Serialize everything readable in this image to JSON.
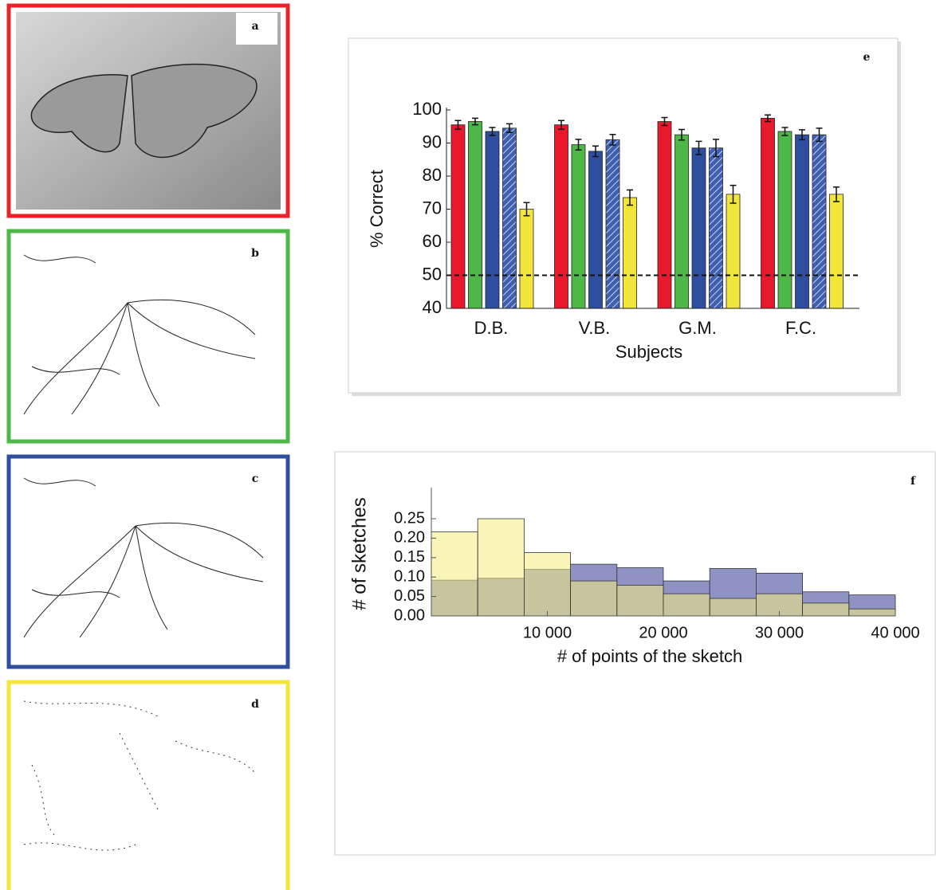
{
  "figure": {
    "panels": [
      "a",
      "b",
      "c",
      "d"
    ]
  },
  "chart_data": [
    {
      "type": "bar",
      "panel_label": "e",
      "xlabel": "Subjects",
      "ylabel": "% Correct",
      "categories": [
        "D.B.",
        "V.B.",
        "G.M.",
        "F.C."
      ],
      "series": [
        {
          "color": "#e8192c",
          "values": [
            95.5,
            95.5,
            96.5,
            97.5
          ],
          "errors": [
            1.3,
            1.3,
            1.2,
            1
          ]
        },
        {
          "color": "#4db848",
          "values": [
            96.5,
            89.5,
            92.5,
            93.5
          ],
          "errors": [
            1,
            1.6,
            1.6,
            1.2
          ]
        },
        {
          "color": "#2e4fa0",
          "values": [
            93.5,
            87.5,
            88.5,
            92.5
          ],
          "errors": [
            1.2,
            1.6,
            2,
            1.5
          ]
        },
        {
          "color": "#3f5fb0",
          "hatch": true,
          "values": [
            94.5,
            91,
            88.5,
            92.5
          ],
          "errors": [
            1.3,
            1.6,
            2.6,
            2
          ]
        },
        {
          "color": "#f2e63a",
          "values": [
            70,
            73.5,
            74.5,
            74.5
          ],
          "errors": [
            2,
            2.3,
            2.7,
            2.2
          ]
        }
      ],
      "ylim": [
        40,
        100
      ],
      "yticks": [
        40,
        50,
        60,
        70,
        80,
        90,
        100
      ],
      "reference_line": 50
    },
    {
      "type": "histogram",
      "panel_label": "f",
      "xlabel": "# of points of the sketch",
      "ylabel": "# of sketches",
      "bins": [
        0,
        4000,
        8000,
        12000,
        16000,
        20000,
        24000,
        28000,
        32000,
        36000,
        40000
      ],
      "series": [
        {
          "color": "#8e93c4",
          "values": [
            0.092,
            0.097,
            0.12,
            0.133,
            0.124,
            0.09,
            0.122,
            0.11,
            0.062,
            0.054
          ]
        },
        {
          "color": "#f5ec80",
          "values": [
            0.216,
            0.25,
            0.163,
            0.09,
            0.079,
            0.057,
            0.045,
            0.057,
            0.033,
            0.018
          ]
        }
      ],
      "xlim": [
        0,
        40000
      ],
      "ylim": [
        0,
        0.33
      ],
      "xticks": [
        {
          "value": 10000,
          "label": "10 000"
        },
        {
          "value": 20000,
          "label": "20 000"
        },
        {
          "value": 30000,
          "label": "30 000"
        },
        {
          "value": 40000,
          "label": "40 000"
        }
      ],
      "yticks": [
        {
          "value": 0,
          "label": "0.00"
        },
        0.05,
        {
          "value": 0.1,
          "label": "0.10"
        },
        0.15,
        {
          "value": 0.2,
          "label": "0.20"
        },
        0.25
      ]
    }
  ]
}
